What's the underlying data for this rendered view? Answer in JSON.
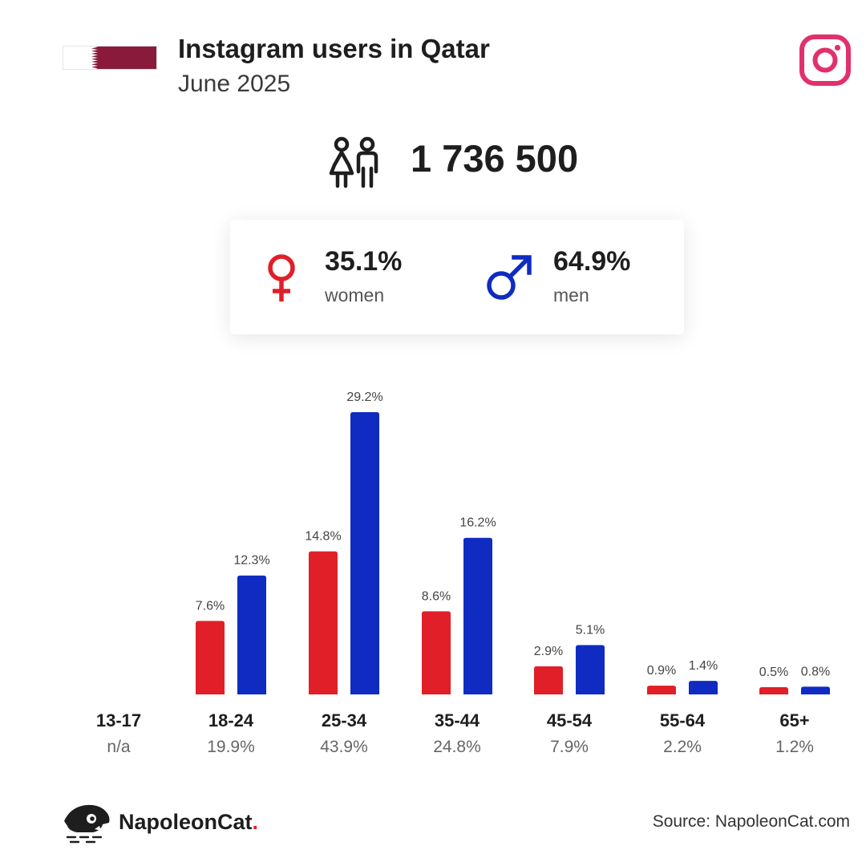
{
  "header": {
    "title": "Instagram users in Qatar",
    "subtitle": "June 2025"
  },
  "flag": {
    "country": "Qatar",
    "white": "#ffffff",
    "maroon": "#8a1a3b"
  },
  "total": {
    "value": "1 736 500",
    "icon": "users-icon"
  },
  "gender": {
    "women": {
      "pct": "35.1%",
      "label": "women",
      "color": "#e01f28",
      "icon": "female-symbol-icon"
    },
    "men": {
      "pct": "64.9%",
      "label": "men",
      "color": "#0f2bc2",
      "icon": "male-symbol-icon"
    }
  },
  "chart_data": {
    "type": "bar",
    "categories": [
      "13-17",
      "18-24",
      "25-34",
      "35-44",
      "45-54",
      "55-64",
      "65+"
    ],
    "category_totals": [
      "n/a",
      "19.9%",
      "43.9%",
      "24.8%",
      "7.9%",
      "2.2%",
      "1.2%"
    ],
    "series": [
      {
        "color": "#e01f28",
        "values": [
          null,
          7.6,
          14.8,
          8.6,
          2.9,
          0.9,
          0.5
        ],
        "labels": [
          "",
          "7.6%",
          "14.8%",
          "8.6%",
          "2.9%",
          "0.9%",
          "0.5%"
        ]
      },
      {
        "color": "#0f2bc2",
        "values": [
          null,
          12.3,
          29.2,
          16.2,
          5.1,
          1.4,
          0.8
        ],
        "labels": [
          "",
          "12.3%",
          "29.2%",
          "16.2%",
          "5.1%",
          "1.4%",
          "0.8%"
        ]
      }
    ],
    "ylim": [
      0,
      29.2
    ],
    "grid": false
  },
  "footer": {
    "brand": "NapoleonCat",
    "brand_dot": ".",
    "source": "Source: NapoleonCat.com",
    "logo_icon": "napoleoncat-logo-icon"
  },
  "icons": {
    "instagram": "instagram-icon"
  }
}
